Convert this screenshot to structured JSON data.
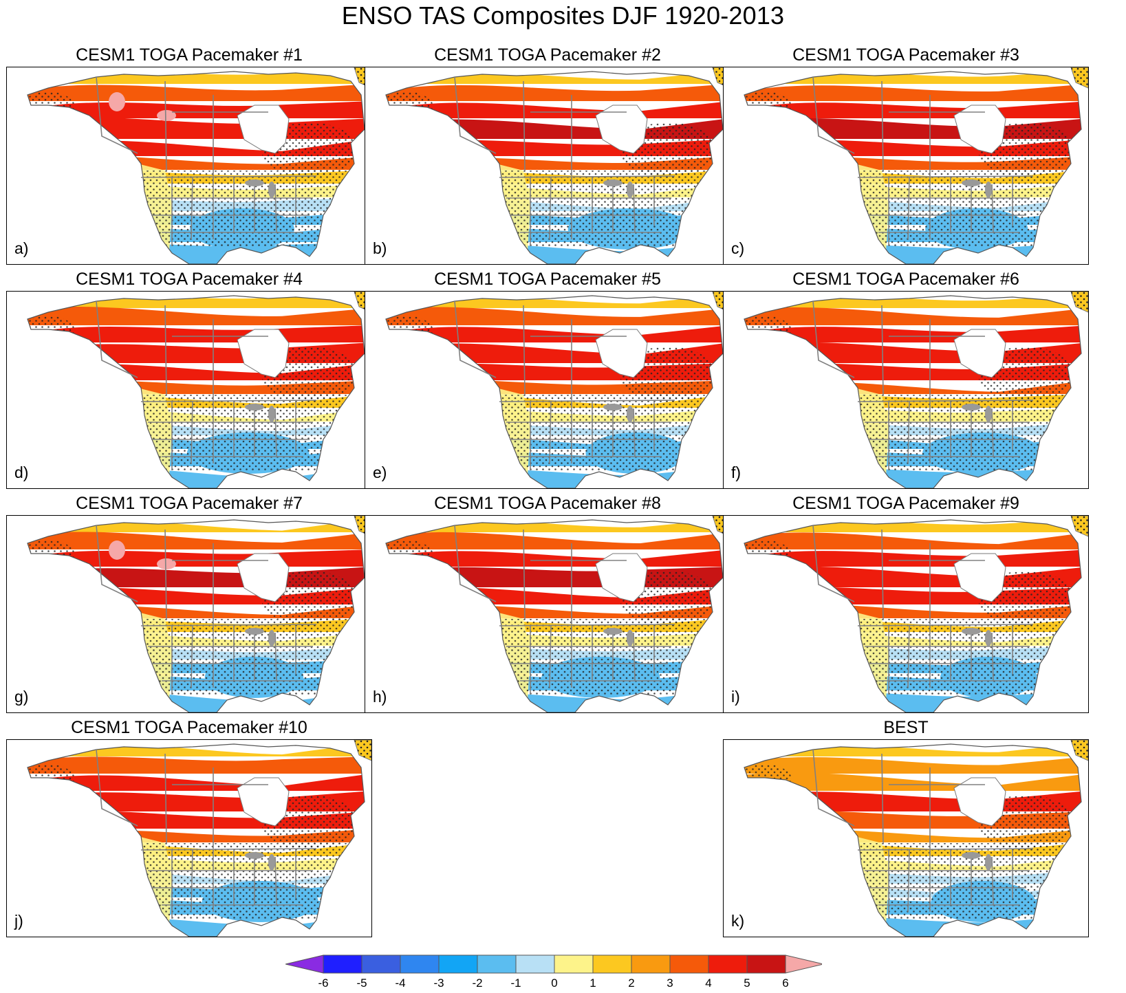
{
  "title": "ENSO TAS Composites DJF 1920-2013",
  "panels": [
    {
      "title": "CESM1 TOGA Pacemaker #1",
      "letter": "a)",
      "variant": 1
    },
    {
      "title": "CESM1 TOGA Pacemaker #2",
      "letter": "b)",
      "variant": 2
    },
    {
      "title": "CESM1 TOGA Pacemaker #3",
      "letter": "c)",
      "variant": 3
    },
    {
      "title": "CESM1 TOGA Pacemaker #4",
      "letter": "d)",
      "variant": 4
    },
    {
      "title": "CESM1 TOGA Pacemaker #5",
      "letter": "e)",
      "variant": 5
    },
    {
      "title": "CESM1 TOGA Pacemaker #6",
      "letter": "f)",
      "variant": 6
    },
    {
      "title": "CESM1 TOGA Pacemaker #7",
      "letter": "g)",
      "variant": 7
    },
    {
      "title": "CESM1 TOGA Pacemaker #8",
      "letter": "h)",
      "variant": 8
    },
    {
      "title": "CESM1 TOGA Pacemaker #9",
      "letter": "i)",
      "variant": 9
    },
    {
      "title": "CESM1 TOGA Pacemaker #10",
      "letter": "j)",
      "variant": 10
    },
    {
      "title": "BEST",
      "letter": "k)",
      "variant": 11
    }
  ],
  "colorbar": {
    "labels": [
      "-6",
      "-5",
      "-4",
      "-3",
      "-2",
      "-1",
      "0",
      "1",
      "2",
      "3",
      "4",
      "5",
      "6"
    ],
    "colors": [
      "#8a2be2",
      "#1f1fff",
      "#3a5fe0",
      "#2f86f0",
      "#12a5f5",
      "#5bbdf0",
      "#b8e0f5",
      "#fdf38a",
      "#fcc820",
      "#f99a10",
      "#f55a0a",
      "#ee1c0c",
      "#c81414",
      "#f5a8a8"
    ]
  }
}
